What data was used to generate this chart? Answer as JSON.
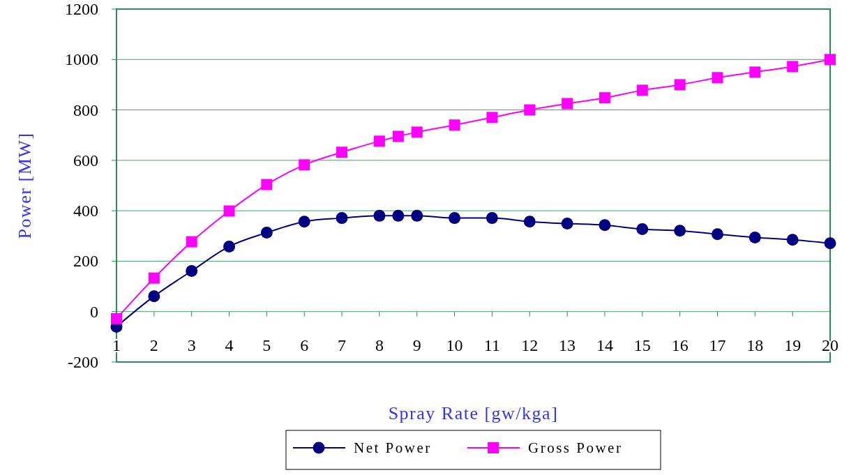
{
  "chart_data": {
    "type": "line",
    "xlabel": "Spray Rate [gw/kga]",
    "ylabel": "Power [MW]",
    "x": [
      1,
      2,
      3,
      4,
      5,
      6,
      7,
      8,
      8.5,
      9,
      10,
      11,
      12,
      13,
      14,
      15,
      16,
      17,
      18,
      19,
      20
    ],
    "xlim": [
      1,
      20
    ],
    "xticks": [
      1,
      2,
      3,
      4,
      5,
      6,
      7,
      8,
      9,
      10,
      11,
      12,
      13,
      14,
      15,
      16,
      17,
      18,
      19,
      20
    ],
    "ylim": [
      -200,
      1200
    ],
    "yticks": [
      -200,
      0,
      200,
      400,
      600,
      800,
      1000,
      1200
    ],
    "grid": "y",
    "legend": "bottom",
    "line_style": "solid",
    "series": [
      {
        "name": "Net Power",
        "color": "#000080",
        "marker": "circle",
        "values": [
          -60,
          61,
          161,
          258,
          313,
          357,
          371,
          380,
          380,
          380,
          371,
          371,
          357,
          349,
          343,
          327,
          321,
          307,
          294,
          285,
          271
        ]
      },
      {
        "name": "Gross Power",
        "color": "#ff00ff",
        "marker": "square",
        "values": [
          -28,
          133,
          277,
          399,
          504,
          582,
          632,
          676,
          695,
          712,
          740,
          770,
          800,
          825,
          848,
          878,
          900,
          928,
          950,
          972,
          1000
        ]
      }
    ]
  }
}
